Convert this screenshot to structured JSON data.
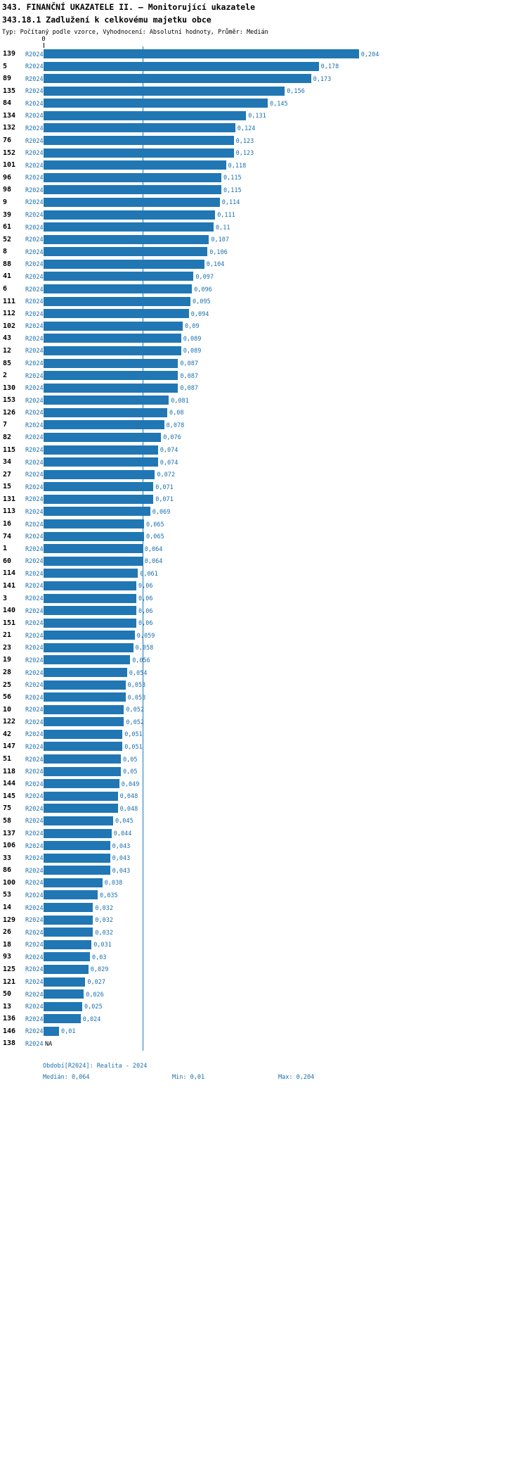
{
  "header": {
    "title": "343. FINANČNÍ UKAZATELE II. – Monitorující ukazatele",
    "subtitle": "343.18.1 Zadlužení k celkovému majetku obce",
    "meta": "Typ: Počítaný podle vzorce, Vyhodnocení: Absolutní hodnoty, Průměr: Medián"
  },
  "footer": {
    "period": "Období[R2024]: Realita - 2024",
    "median": "Medián: 0,064",
    "min": "Min: 0,01",
    "max": "Max: 0,204"
  },
  "colors": {
    "bar": "#2077b4",
    "accent_text": "#1a6fae",
    "median_line": "#2077b4"
  },
  "chart_data": {
    "type": "bar",
    "orientation": "horizontal",
    "series_label": "R2024",
    "axis_zero_label": "0",
    "x_axis_ticks": [
      "0"
    ],
    "median": 0.064,
    "min": 0.01,
    "max": 0.204,
    "value_decimal_separator": ",",
    "rows": [
      {
        "id": "139",
        "value": 0.204,
        "label": "0,204"
      },
      {
        "id": "5",
        "value": 0.178,
        "label": "0,178"
      },
      {
        "id": "89",
        "value": 0.173,
        "label": "0,173"
      },
      {
        "id": "135",
        "value": 0.156,
        "label": "0,156"
      },
      {
        "id": "84",
        "value": 0.145,
        "label": "0,145"
      },
      {
        "id": "134",
        "value": 0.131,
        "label": "0,131"
      },
      {
        "id": "132",
        "value": 0.124,
        "label": "0,124"
      },
      {
        "id": "76",
        "value": 0.123,
        "label": "0,123"
      },
      {
        "id": "152",
        "value": 0.123,
        "label": "0,123"
      },
      {
        "id": "101",
        "value": 0.118,
        "label": "0,118"
      },
      {
        "id": "96",
        "value": 0.115,
        "label": "0,115"
      },
      {
        "id": "98",
        "value": 0.115,
        "label": "0,115"
      },
      {
        "id": "9",
        "value": 0.114,
        "label": "0,114"
      },
      {
        "id": "39",
        "value": 0.111,
        "label": "0,111"
      },
      {
        "id": "61",
        "value": 0.11,
        "label": "0,11"
      },
      {
        "id": "52",
        "value": 0.107,
        "label": "0,107"
      },
      {
        "id": "8",
        "value": 0.106,
        "label": "0,106"
      },
      {
        "id": "88",
        "value": 0.104,
        "label": "0,104"
      },
      {
        "id": "41",
        "value": 0.097,
        "label": "0,097"
      },
      {
        "id": "6",
        "value": 0.096,
        "label": "0,096"
      },
      {
        "id": "111",
        "value": 0.095,
        "label": "0,095"
      },
      {
        "id": "112",
        "value": 0.094,
        "label": "0,094"
      },
      {
        "id": "102",
        "value": 0.09,
        "label": "0,09"
      },
      {
        "id": "43",
        "value": 0.089,
        "label": "0,089"
      },
      {
        "id": "12",
        "value": 0.089,
        "label": "0,089"
      },
      {
        "id": "85",
        "value": 0.087,
        "label": "0,087"
      },
      {
        "id": "2",
        "value": 0.087,
        "label": "0,087"
      },
      {
        "id": "130",
        "value": 0.087,
        "label": "0,087"
      },
      {
        "id": "153",
        "value": 0.081,
        "label": "0,081"
      },
      {
        "id": "126",
        "value": 0.08,
        "label": "0,08"
      },
      {
        "id": "7",
        "value": 0.078,
        "label": "0,078"
      },
      {
        "id": "82",
        "value": 0.076,
        "label": "0,076"
      },
      {
        "id": "115",
        "value": 0.074,
        "label": "0,074"
      },
      {
        "id": "34",
        "value": 0.074,
        "label": "0,074"
      },
      {
        "id": "27",
        "value": 0.072,
        "label": "0,072"
      },
      {
        "id": "15",
        "value": 0.071,
        "label": "0,071"
      },
      {
        "id": "131",
        "value": 0.071,
        "label": "0,071"
      },
      {
        "id": "113",
        "value": 0.069,
        "label": "0,069"
      },
      {
        "id": "16",
        "value": 0.065,
        "label": "0,065"
      },
      {
        "id": "74",
        "value": 0.065,
        "label": "0,065"
      },
      {
        "id": "1",
        "value": 0.064,
        "label": "0,064"
      },
      {
        "id": "60",
        "value": 0.064,
        "label": "0,064"
      },
      {
        "id": "114",
        "value": 0.061,
        "label": "0,061"
      },
      {
        "id": "141",
        "value": 0.06,
        "label": "0,06"
      },
      {
        "id": "3",
        "value": 0.06,
        "label": "0,06"
      },
      {
        "id": "140",
        "value": 0.06,
        "label": "0,06"
      },
      {
        "id": "151",
        "value": 0.06,
        "label": "0,06"
      },
      {
        "id": "21",
        "value": 0.059,
        "label": "0,059"
      },
      {
        "id": "23",
        "value": 0.058,
        "label": "0,058"
      },
      {
        "id": "19",
        "value": 0.056,
        "label": "0,056"
      },
      {
        "id": "28",
        "value": 0.054,
        "label": "0,054"
      },
      {
        "id": "25",
        "value": 0.053,
        "label": "0,053"
      },
      {
        "id": "56",
        "value": 0.053,
        "label": "0,053"
      },
      {
        "id": "10",
        "value": 0.052,
        "label": "0,052"
      },
      {
        "id": "122",
        "value": 0.052,
        "label": "0,052"
      },
      {
        "id": "42",
        "value": 0.051,
        "label": "0,051"
      },
      {
        "id": "147",
        "value": 0.051,
        "label": "0,051"
      },
      {
        "id": "51",
        "value": 0.05,
        "label": "0,05"
      },
      {
        "id": "118",
        "value": 0.05,
        "label": "0,05"
      },
      {
        "id": "144",
        "value": 0.049,
        "label": "0,049"
      },
      {
        "id": "145",
        "value": 0.048,
        "label": "0,048"
      },
      {
        "id": "75",
        "value": 0.048,
        "label": "0,048"
      },
      {
        "id": "58",
        "value": 0.045,
        "label": "0,045"
      },
      {
        "id": "137",
        "value": 0.044,
        "label": "0,044"
      },
      {
        "id": "106",
        "value": 0.043,
        "label": "0,043"
      },
      {
        "id": "33",
        "value": 0.043,
        "label": "0,043"
      },
      {
        "id": "86",
        "value": 0.043,
        "label": "0,043"
      },
      {
        "id": "100",
        "value": 0.038,
        "label": "0,038"
      },
      {
        "id": "53",
        "value": 0.035,
        "label": "0,035"
      },
      {
        "id": "14",
        "value": 0.032,
        "label": "0,032"
      },
      {
        "id": "129",
        "value": 0.032,
        "label": "0,032"
      },
      {
        "id": "26",
        "value": 0.032,
        "label": "0,032"
      },
      {
        "id": "18",
        "value": 0.031,
        "label": "0,031"
      },
      {
        "id": "93",
        "value": 0.03,
        "label": "0,03"
      },
      {
        "id": "125",
        "value": 0.029,
        "label": "0,029"
      },
      {
        "id": "121",
        "value": 0.027,
        "label": "0,027"
      },
      {
        "id": "50",
        "value": 0.026,
        "label": "0,026"
      },
      {
        "id": "13",
        "value": 0.025,
        "label": "0,025"
      },
      {
        "id": "136",
        "value": 0.024,
        "label": "0,024"
      },
      {
        "id": "146",
        "value": 0.01,
        "label": "0,01"
      },
      {
        "id": "138",
        "value": null,
        "label": "NA"
      }
    ]
  }
}
